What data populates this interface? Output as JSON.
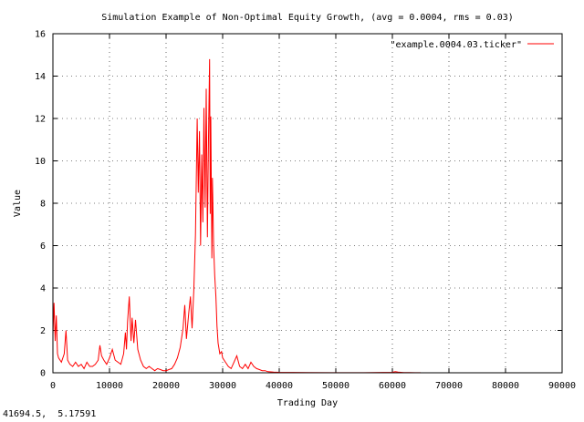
{
  "status_readout": "41694.5,  5.17591",
  "chart_data": {
    "type": "line",
    "title": "Simulation Example of Non-Optimal Equity Growth, (avg = 0.0004, rms = 0.03)",
    "xlabel": "Trading Day",
    "ylabel": "Value",
    "xlim": [
      0,
      90000
    ],
    "ylim": [
      0,
      16
    ],
    "x_ticks": [
      "0",
      "10000",
      "20000",
      "30000",
      "40000",
      "50000",
      "60000",
      "70000",
      "80000",
      "90000"
    ],
    "y_ticks": [
      "0",
      "2",
      "4",
      "6",
      "8",
      "10",
      "12",
      "14",
      "16"
    ],
    "grid": true,
    "legend_position": "top-right",
    "color": "#ff0000",
    "series": [
      {
        "name": "\"example.0004.03.ticker\"",
        "x": [
          0,
          200,
          400,
          600,
          800,
          1000,
          1500,
          2000,
          2300,
          2600,
          3000,
          3500,
          4000,
          4500,
          5000,
          5500,
          6000,
          6500,
          7000,
          7500,
          8000,
          8300,
          8600,
          9000,
          9500,
          10000,
          10500,
          11000,
          11500,
          12000,
          12500,
          12800,
          13000,
          13200,
          13500,
          13800,
          14000,
          14300,
          14600,
          15000,
          15500,
          16000,
          16500,
          17000,
          17500,
          18000,
          18500,
          19000,
          19500,
          20000,
          20500,
          21000,
          21500,
          22000,
          22500,
          23000,
          23300,
          23600,
          24000,
          24300,
          24600,
          24900,
          25200,
          25500,
          25700,
          25900,
          26100,
          26300,
          26500,
          26700,
          26900,
          27100,
          27300,
          27500,
          27700,
          27800,
          27900,
          28000,
          28100,
          28200,
          28400,
          28600,
          28800,
          29000,
          29200,
          29500,
          29800,
          30000,
          30500,
          31000,
          31500,
          32000,
          32500,
          33000,
          33500,
          34000,
          34500,
          35000,
          35500,
          36000,
          36500,
          37000,
          37500,
          38000,
          39000,
          40000,
          45000,
          50000,
          55000,
          60000,
          60500,
          61000,
          61500,
          62000,
          62500,
          63000,
          64000,
          65000
        ],
        "y": [
          1.8,
          3.3,
          1.5,
          2.7,
          0.9,
          0.7,
          0.5,
          0.9,
          2.0,
          0.6,
          0.4,
          0.3,
          0.5,
          0.3,
          0.4,
          0.2,
          0.5,
          0.3,
          0.3,
          0.4,
          0.6,
          1.3,
          0.8,
          0.6,
          0.4,
          0.7,
          1.1,
          0.6,
          0.5,
          0.4,
          0.9,
          1.9,
          1.1,
          2.4,
          3.6,
          1.5,
          2.6,
          1.4,
          2.5,
          1.1,
          0.6,
          0.3,
          0.2,
          0.3,
          0.2,
          0.1,
          0.2,
          0.15,
          0.1,
          0.1,
          0.15,
          0.2,
          0.4,
          0.7,
          1.2,
          2.1,
          3.2,
          1.6,
          2.8,
          3.6,
          2.1,
          3.9,
          6.5,
          12.0,
          8.5,
          11.4,
          6.0,
          10.3,
          7.1,
          12.5,
          7.8,
          13.4,
          6.4,
          11.1,
          14.8,
          7.5,
          12.1,
          8.8,
          5.4,
          9.2,
          6.0,
          4.6,
          3.6,
          2.2,
          1.4,
          0.9,
          1.0,
          0.7,
          0.5,
          0.3,
          0.2,
          0.5,
          0.8,
          0.3,
          0.2,
          0.4,
          0.2,
          0.5,
          0.3,
          0.2,
          0.15,
          0.1,
          0.1,
          0.05,
          0.03,
          0.02,
          0.01,
          0.005,
          0.005,
          0.02,
          0.05,
          0.03,
          0.02,
          0.01,
          0.01,
          0.01,
          0.005,
          0.005
        ]
      }
    ]
  }
}
